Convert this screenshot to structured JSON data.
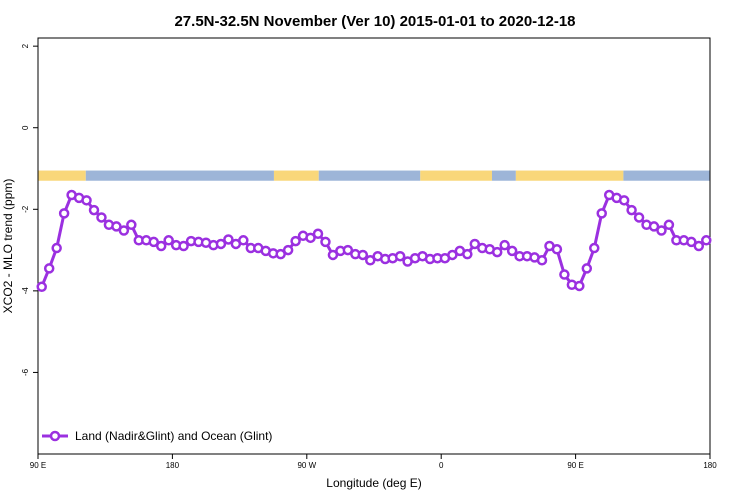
{
  "chart_data": {
    "type": "line",
    "title": "27.5N-32.5N November (Ver 10)   2015-01-01 to 2020-12-18",
    "xlabel": "Longitude (deg E)",
    "ylabel": "XCO2 - MLO trend (ppm)",
    "xlim": [
      90,
      540
    ],
    "ylim": [
      -8,
      2.2
    ],
    "x_ticks": [
      {
        "value": 90,
        "label": "90 E"
      },
      {
        "value": 180,
        "label": "180"
      },
      {
        "value": 270,
        "label": "90 W"
      },
      {
        "value": 360,
        "label": "0"
      },
      {
        "value": 450,
        "label": "90 E"
      },
      {
        "value": 540,
        "label": "180"
      }
    ],
    "y_ticks": [
      {
        "value": 2,
        "label": "2"
      },
      {
        "value": 0,
        "label": "0"
      },
      {
        "value": -2,
        "label": "-2"
      },
      {
        "value": -4,
        "label": "-4"
      },
      {
        "value": -6,
        "label": "-6"
      }
    ],
    "grid": false,
    "legend_position": "bottom-left",
    "surface_band": {
      "y_top": -1.05,
      "y_bottom": -1.3,
      "land_color": "#f9d77a",
      "ocean_color": "#9db5d8",
      "segments": [
        {
          "start": 90,
          "end": 122,
          "type": "land"
        },
        {
          "start": 122,
          "end": 248,
          "type": "ocean"
        },
        {
          "start": 248,
          "end": 278,
          "type": "land"
        },
        {
          "start": 278,
          "end": 346,
          "type": "ocean"
        },
        {
          "start": 346,
          "end": 394,
          "type": "land"
        },
        {
          "start": 394,
          "end": 410,
          "type": "ocean"
        },
        {
          "start": 410,
          "end": 482,
          "type": "land"
        },
        {
          "start": 482,
          "end": 540,
          "type": "ocean"
        }
      ]
    },
    "series": [
      {
        "name": "Land (Nadir&Glint) and Ocean (Glint)",
        "color": "#9b30e0",
        "x": [
          92.5,
          97.5,
          102.5,
          107.5,
          112.5,
          117.5,
          122.5,
          127.5,
          132.5,
          137.5,
          142.5,
          147.5,
          152.5,
          157.5,
          162.5,
          167.5,
          172.5,
          177.5,
          182.5,
          187.5,
          192.5,
          197.5,
          202.5,
          207.5,
          212.5,
          217.5,
          222.5,
          227.5,
          232.5,
          237.5,
          242.5,
          247.5,
          252.5,
          257.5,
          262.5,
          267.5,
          272.5,
          277.5,
          282.5,
          287.5,
          292.5,
          297.5,
          302.5,
          307.5,
          312.5,
          317.5,
          322.5,
          327.5,
          332.5,
          337.5,
          342.5,
          347.5,
          352.5,
          357.5,
          362.5,
          367.5,
          372.5,
          377.5,
          382.5,
          387.5,
          392.5,
          397.5,
          402.5,
          407.5,
          412.5,
          417.5,
          422.5,
          427.5,
          432.5,
          437.5,
          442.5,
          447.5,
          452.5,
          457.5,
          462.5,
          467.5,
          472.5,
          477.5,
          482.5,
          487.5,
          492.5,
          497.5,
          502.5,
          507.5,
          512.5,
          517.5,
          522.5,
          527.5,
          532.5,
          537.5
        ],
        "y": [
          -3.9,
          -3.45,
          -2.95,
          -2.1,
          -1.65,
          -1.72,
          -1.78,
          -2.02,
          -2.2,
          -2.38,
          -2.42,
          -2.52,
          -2.38,
          -2.76,
          -2.76,
          -2.8,
          -2.9,
          -2.76,
          -2.88,
          -2.9,
          -2.78,
          -2.8,
          -2.82,
          -2.88,
          -2.85,
          -2.74,
          -2.85,
          -2.76,
          -2.95,
          -2.95,
          -3.02,
          -3.08,
          -3.1,
          -3.0,
          -2.78,
          -2.65,
          -2.7,
          -2.6,
          -2.8,
          -3.12,
          -3.02,
          -3.0,
          -3.1,
          -3.12,
          -3.25,
          -3.15,
          -3.22,
          -3.2,
          -3.15,
          -3.28,
          -3.2,
          -3.15,
          -3.22,
          -3.2,
          -3.2,
          -3.12,
          -3.02,
          -3.1,
          -2.85,
          -2.95,
          -2.98,
          -3.05,
          -2.88,
          -3.02,
          -3.15,
          -3.15,
          -3.18,
          -3.25,
          -2.9,
          -2.98,
          -3.6,
          -3.85,
          -3.88,
          -3.45,
          -2.95,
          -2.1,
          -1.65,
          -1.72,
          -1.78,
          -2.02,
          -2.2,
          -2.38,
          -2.42,
          -2.52,
          -2.38,
          -2.76,
          -2.76,
          -2.8,
          -2.9,
          -2.76
        ]
      }
    ]
  }
}
